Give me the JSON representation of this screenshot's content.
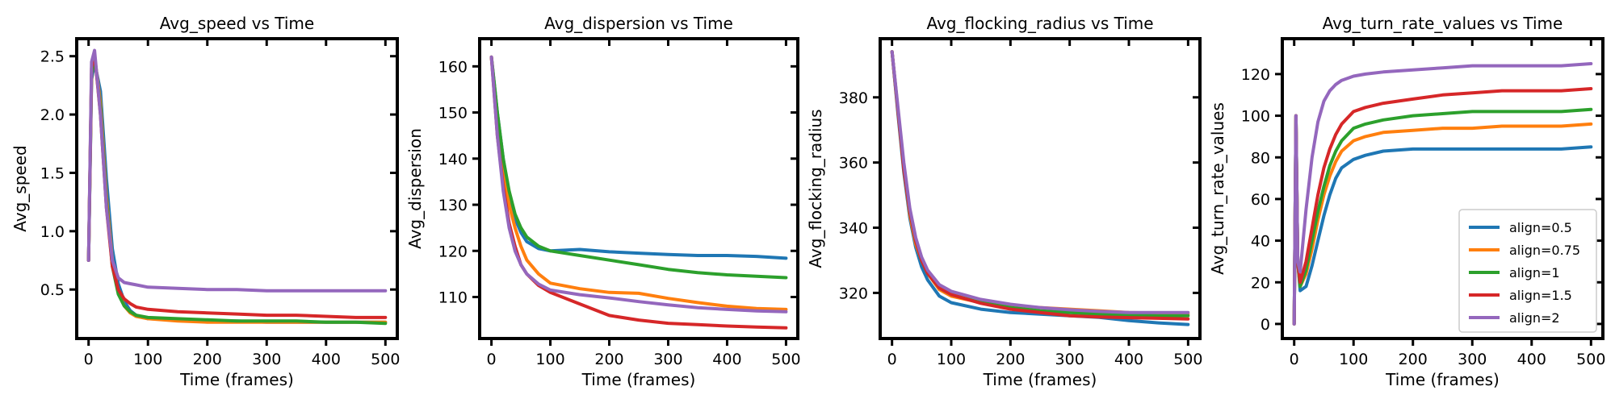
{
  "chart_data": [
    {
      "type": "line",
      "title": "Avg_speed vs Time",
      "xlabel": "Time (frames)",
      "ylabel": "Avg_speed",
      "xlim": [
        -20,
        520
      ],
      "ylim": [
        0.08,
        2.65
      ],
      "xticks": [
        0,
        100,
        200,
        300,
        400,
        500
      ],
      "xtick_labels": [
        "0",
        "100",
        "200",
        "300",
        "400",
        "500"
      ],
      "yticks": [
        0.5,
        1.0,
        1.5,
        2.0,
        2.5
      ],
      "ytick_labels": [
        "0.5",
        "1.0",
        "1.5",
        "2.0",
        "2.5"
      ],
      "legend": false,
      "series": [
        {
          "name": "align=0.5",
          "x": [
            0,
            5,
            10,
            20,
            30,
            40,
            50,
            60,
            70,
            80,
            100,
            150,
            200,
            250,
            300,
            350,
            400,
            450,
            500
          ],
          "y": [
            0.75,
            2.3,
            2.45,
            2.2,
            1.45,
            0.85,
            0.55,
            0.4,
            0.32,
            0.28,
            0.25,
            0.24,
            0.23,
            0.23,
            0.22,
            0.22,
            0.22,
            0.22,
            0.22
          ]
        },
        {
          "name": "align=0.75",
          "x": [
            0,
            5,
            10,
            20,
            30,
            40,
            50,
            60,
            70,
            80,
            100,
            150,
            200,
            250,
            300,
            350,
            400,
            450,
            500
          ],
          "y": [
            0.75,
            2.35,
            2.5,
            2.1,
            1.3,
            0.75,
            0.48,
            0.36,
            0.3,
            0.27,
            0.25,
            0.23,
            0.22,
            0.22,
            0.22,
            0.22,
            0.22,
            0.22,
            0.22
          ]
        },
        {
          "name": "align=1",
          "x": [
            0,
            5,
            10,
            20,
            30,
            40,
            50,
            60,
            70,
            80,
            100,
            150,
            200,
            250,
            300,
            350,
            400,
            450,
            500
          ],
          "y": [
            0.75,
            2.35,
            2.5,
            2.05,
            1.25,
            0.7,
            0.46,
            0.36,
            0.31,
            0.28,
            0.26,
            0.25,
            0.24,
            0.23,
            0.23,
            0.23,
            0.22,
            0.22,
            0.21
          ]
        },
        {
          "name": "align=1.5",
          "x": [
            0,
            5,
            10,
            20,
            30,
            40,
            50,
            60,
            70,
            80,
            100,
            150,
            200,
            250,
            300,
            350,
            400,
            450,
            500
          ],
          "y": [
            0.75,
            2.4,
            2.52,
            2.0,
            1.2,
            0.7,
            0.5,
            0.42,
            0.38,
            0.35,
            0.33,
            0.31,
            0.3,
            0.29,
            0.28,
            0.28,
            0.27,
            0.26,
            0.26
          ]
        },
        {
          "name": "align=2",
          "x": [
            0,
            5,
            10,
            20,
            30,
            40,
            50,
            60,
            70,
            80,
            100,
            150,
            200,
            250,
            300,
            350,
            400,
            450,
            500
          ],
          "y": [
            0.75,
            2.45,
            2.55,
            2.0,
            1.2,
            0.75,
            0.6,
            0.56,
            0.55,
            0.54,
            0.52,
            0.51,
            0.5,
            0.5,
            0.49,
            0.49,
            0.49,
            0.49,
            0.49
          ]
        }
      ]
    },
    {
      "type": "line",
      "title": "Avg_dispersion vs Time",
      "xlabel": "Time (frames)",
      "ylabel": "Avg_dispersion",
      "xlim": [
        -20,
        520
      ],
      "ylim": [
        101,
        166
      ],
      "xticks": [
        0,
        100,
        200,
        300,
        400,
        500
      ],
      "xtick_labels": [
        "0",
        "100",
        "200",
        "300",
        "400",
        "500"
      ],
      "yticks": [
        110,
        120,
        130,
        140,
        150,
        160
      ],
      "ytick_labels": [
        "110",
        "120",
        "130",
        "140",
        "150",
        "160"
      ],
      "legend": false,
      "series": [
        {
          "name": "align=0.5",
          "x": [
            0,
            10,
            20,
            30,
            40,
            50,
            60,
            80,
            100,
            150,
            200,
            250,
            300,
            350,
            400,
            450,
            500
          ],
          "y": [
            162,
            150,
            140,
            132,
            127,
            124,
            122,
            120.5,
            120,
            120.3,
            119.8,
            119.5,
            119.2,
            119,
            119,
            118.8,
            118.4
          ]
        },
        {
          "name": "align=0.75",
          "x": [
            0,
            10,
            20,
            30,
            40,
            50,
            60,
            80,
            100,
            150,
            200,
            250,
            300,
            350,
            400,
            450,
            500
          ],
          "y": [
            162,
            148,
            138,
            130,
            125,
            121,
            118,
            115,
            113,
            111.8,
            111,
            110.8,
            109.7,
            108.8,
            108,
            107.5,
            107.3
          ]
        },
        {
          "name": "align=1",
          "x": [
            0,
            10,
            20,
            30,
            40,
            50,
            60,
            80,
            100,
            150,
            200,
            250,
            300,
            350,
            400,
            450,
            500
          ],
          "y": [
            162,
            150,
            140,
            133,
            128,
            125,
            123,
            121,
            120,
            119,
            118,
            117,
            116,
            115.3,
            114.8,
            114.5,
            114.2
          ]
        },
        {
          "name": "align=1.5",
          "x": [
            0,
            10,
            20,
            30,
            40,
            50,
            60,
            80,
            100,
            150,
            200,
            250,
            300,
            350,
            400,
            450,
            500
          ],
          "y": [
            162,
            145,
            134,
            126,
            121,
            117,
            115,
            112.5,
            111,
            108.5,
            106,
            105,
            104.3,
            104,
            103.7,
            103.5,
            103.3
          ]
        },
        {
          "name": "align=2",
          "x": [
            0,
            10,
            20,
            30,
            40,
            50,
            60,
            80,
            100,
            150,
            200,
            250,
            300,
            350,
            400,
            450,
            500
          ],
          "y": [
            162,
            145,
            133,
            125,
            120,
            117,
            115,
            112.8,
            111.5,
            110.5,
            109.8,
            109,
            108.3,
            107.7,
            107.3,
            107,
            106.8
          ]
        }
      ]
    },
    {
      "type": "line",
      "title": "Avg_flocking_radius vs Time",
      "xlabel": "Time (frames)",
      "ylabel": "Avg_flocking_radius",
      "xlim": [
        -20,
        520
      ],
      "ylim": [
        306,
        398
      ],
      "xticks": [
        0,
        100,
        200,
        300,
        400,
        500
      ],
      "xtick_labels": [
        "0",
        "100",
        "200",
        "300",
        "400",
        "500"
      ],
      "yticks": [
        320,
        340,
        360,
        380
      ],
      "ytick_labels": [
        "320",
        "340",
        "360",
        "380"
      ],
      "legend": false,
      "series": [
        {
          "name": "align=0.5",
          "x": [
            0,
            10,
            20,
            30,
            40,
            50,
            60,
            80,
            100,
            150,
            200,
            250,
            300,
            350,
            400,
            450,
            500
          ],
          "y": [
            394,
            375,
            357,
            343,
            334,
            328,
            324,
            319,
            317,
            315,
            314,
            313.5,
            313,
            312.5,
            311.5,
            310.8,
            310.3
          ]
        },
        {
          "name": "align=0.75",
          "x": [
            0,
            10,
            20,
            30,
            40,
            50,
            60,
            80,
            100,
            150,
            200,
            250,
            300,
            350,
            400,
            450,
            500
          ],
          "y": [
            394,
            376,
            358,
            344,
            335,
            330,
            326,
            321,
            319,
            317,
            316,
            315.5,
            315,
            314.5,
            314,
            313.8,
            313.5
          ]
        },
        {
          "name": "align=1",
          "x": [
            0,
            10,
            20,
            30,
            40,
            50,
            60,
            80,
            100,
            150,
            200,
            250,
            300,
            350,
            400,
            450,
            500
          ],
          "y": [
            394,
            376,
            358,
            345,
            336,
            330,
            326,
            321.5,
            319.5,
            317,
            315.5,
            314.5,
            314,
            313.5,
            313.2,
            313,
            313
          ]
        },
        {
          "name": "align=1.5",
          "x": [
            0,
            10,
            20,
            30,
            40,
            50,
            60,
            80,
            100,
            150,
            200,
            250,
            300,
            350,
            400,
            450,
            500
          ],
          "y": [
            394,
            376,
            358,
            345,
            336,
            330,
            326,
            321.5,
            319.5,
            316.8,
            315,
            314,
            313,
            312.6,
            312.4,
            312.2,
            312
          ]
        },
        {
          "name": "align=2",
          "x": [
            0,
            10,
            20,
            30,
            40,
            50,
            60,
            80,
            100,
            150,
            200,
            250,
            300,
            350,
            400,
            450,
            500
          ],
          "y": [
            394,
            377,
            360,
            346,
            337,
            331,
            327,
            322.5,
            320.5,
            318,
            316.5,
            315.5,
            314.8,
            314.3,
            314,
            314,
            314
          ]
        }
      ]
    },
    {
      "type": "line",
      "title": "Avg_turn_rate_values vs Time",
      "xlabel": "Time (frames)",
      "ylabel": "Avg_turn_rate_values",
      "xlim": [
        -20,
        520
      ],
      "ylim": [
        -7,
        137
      ],
      "xticks": [
        0,
        100,
        200,
        300,
        400,
        500
      ],
      "xtick_labels": [
        "0",
        "100",
        "200",
        "300",
        "400",
        "500"
      ],
      "yticks": [
        0,
        20,
        40,
        60,
        80,
        100,
        120
      ],
      "ytick_labels": [
        "0",
        "20",
        "40",
        "60",
        "80",
        "100",
        "120"
      ],
      "legend": true,
      "legend_location": "lower-right",
      "series": [
        {
          "name": "align=0.5",
          "x": [
            0,
            3,
            6,
            10,
            20,
            30,
            40,
            50,
            60,
            70,
            80,
            100,
            120,
            150,
            200,
            250,
            300,
            350,
            400,
            450,
            500
          ],
          "y": [
            0,
            100,
            30,
            16,
            18,
            28,
            40,
            52,
            62,
            70,
            75,
            79,
            81,
            83,
            84,
            84,
            84,
            84,
            84,
            84,
            85
          ]
        },
        {
          "name": "align=0.75",
          "x": [
            0,
            3,
            6,
            10,
            20,
            30,
            40,
            50,
            60,
            70,
            80,
            100,
            120,
            150,
            200,
            250,
            300,
            350,
            400,
            450,
            500
          ],
          "y": [
            0,
            100,
            30,
            18,
            24,
            36,
            50,
            62,
            71,
            78,
            83,
            88,
            90,
            92,
            93,
            94,
            94,
            95,
            95,
            95,
            96
          ]
        },
        {
          "name": "align=1",
          "x": [
            0,
            3,
            6,
            10,
            20,
            30,
            40,
            50,
            60,
            70,
            80,
            100,
            120,
            150,
            200,
            250,
            300,
            350,
            400,
            450,
            500
          ],
          "y": [
            0,
            100,
            30,
            18,
            26,
            40,
            54,
            66,
            76,
            83,
            88,
            94,
            96,
            98,
            100,
            101,
            102,
            102,
            102,
            102,
            103
          ]
        },
        {
          "name": "align=1.5",
          "x": [
            0,
            3,
            6,
            10,
            20,
            30,
            40,
            50,
            60,
            70,
            80,
            100,
            120,
            150,
            200,
            250,
            300,
            350,
            400,
            450,
            500
          ],
          "y": [
            0,
            100,
            30,
            20,
            30,
            46,
            62,
            75,
            84,
            91,
            96,
            102,
            104,
            106,
            108,
            110,
            111,
            112,
            112,
            112,
            113
          ]
        },
        {
          "name": "align=2",
          "x": [
            0,
            3,
            6,
            10,
            20,
            30,
            40,
            50,
            60,
            70,
            80,
            100,
            120,
            150,
            200,
            250,
            300,
            350,
            400,
            450,
            500
          ],
          "y": [
            0,
            100,
            30,
            25,
            55,
            80,
            97,
            107,
            112,
            115,
            117,
            119,
            120,
            121,
            122,
            123,
            124,
            124,
            124,
            124,
            125
          ]
        }
      ]
    }
  ],
  "colors": {
    "align=0.5": "#1f77b4",
    "align=0.75": "#ff7f0e",
    "align=1": "#2ca02c",
    "align=1.5": "#d62728",
    "align=2": "#9467bd",
    "axes": "#000000",
    "background": "#ffffff"
  }
}
